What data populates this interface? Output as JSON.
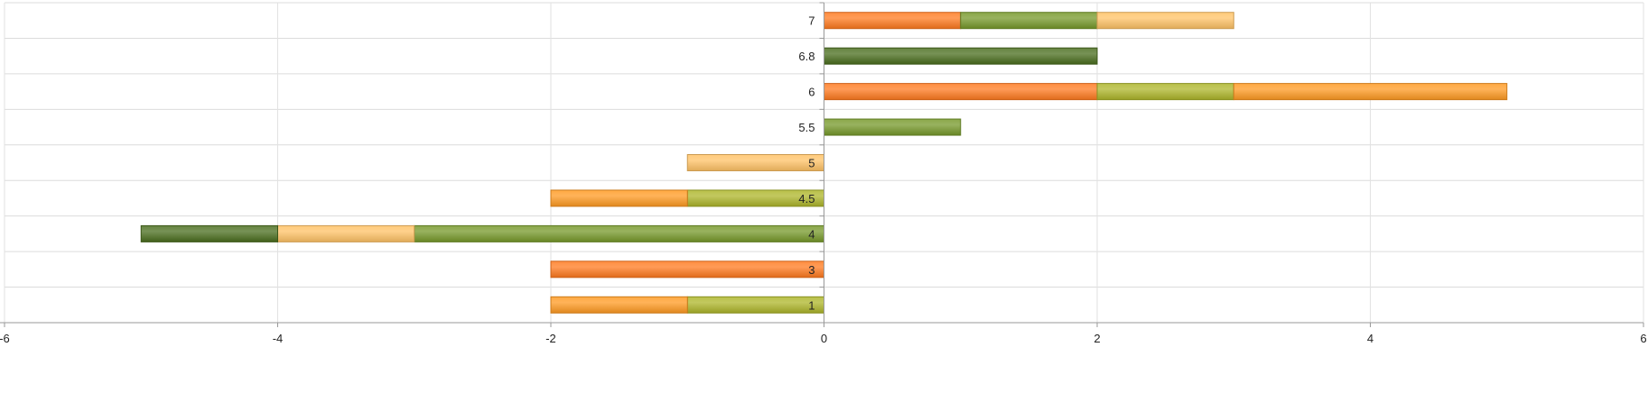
{
  "chart_data": {
    "type": "bar",
    "orientation": "horizontal",
    "stacked": true,
    "title": "",
    "xlabel": "",
    "ylabel": "",
    "categories": [
      "1",
      "3",
      "4",
      "4.5",
      "5",
      "5.5",
      "6",
      "6.8",
      "7"
    ],
    "xlim": [
      -6,
      6
    ],
    "xticks": [
      -6,
      -4,
      -2,
      0,
      2,
      4,
      6
    ],
    "grid": true,
    "legend": "none",
    "series": [
      {
        "values": [
          0,
          -2,
          0,
          0,
          0,
          0,
          2,
          0,
          1
        ],
        "color": "#ff7a1f"
      },
      {
        "values": [
          -1,
          0,
          0,
          -1,
          0,
          0,
          1,
          0,
          0
        ],
        "color": "#adb52a"
      },
      {
        "values": [
          -1,
          0,
          0,
          -1,
          0,
          0,
          2,
          0,
          0
        ],
        "color": "#ff9a22"
      },
      {
        "values": [
          0,
          0,
          -3,
          0,
          0,
          1,
          0,
          0,
          1
        ],
        "color": "#76982a"
      },
      {
        "values": [
          0,
          0,
          -1,
          0,
          -1,
          0,
          0,
          0,
          1
        ],
        "color": "#ffc265"
      },
      {
        "values": [
          0,
          0,
          -1,
          0,
          0,
          0,
          0,
          2,
          0
        ],
        "color": "#4a6d1e"
      }
    ]
  }
}
